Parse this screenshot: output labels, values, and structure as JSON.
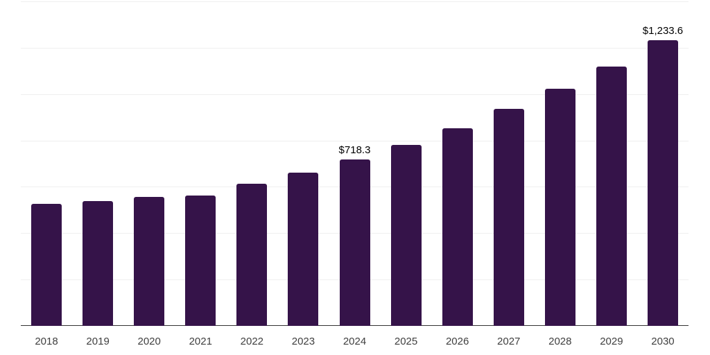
{
  "chart_data": {
    "type": "bar",
    "title": "",
    "xlabel": "",
    "ylabel": "",
    "categories": [
      "2018",
      "2019",
      "2020",
      "2021",
      "2022",
      "2023",
      "2024",
      "2025",
      "2026",
      "2027",
      "2028",
      "2029",
      "2030"
    ],
    "values": [
      528,
      538,
      555,
      561,
      614,
      662,
      718.3,
      781,
      854,
      935,
      1024,
      1120,
      1233.6
    ],
    "bar_labels": [
      "",
      "",
      "",
      "",
      "",
      "",
      "$718.3",
      "",
      "",
      "",
      "",
      "",
      "$1,233.6"
    ],
    "ylim": [
      0,
      1400
    ],
    "gridline_step": 200,
    "grid": true,
    "legend": false,
    "bar_color": "#351349",
    "axis_line_color": "#333333",
    "gridline_color": "#efefef",
    "tick_label_color": "#3f3f3f",
    "data_label_color": "#000000"
  }
}
